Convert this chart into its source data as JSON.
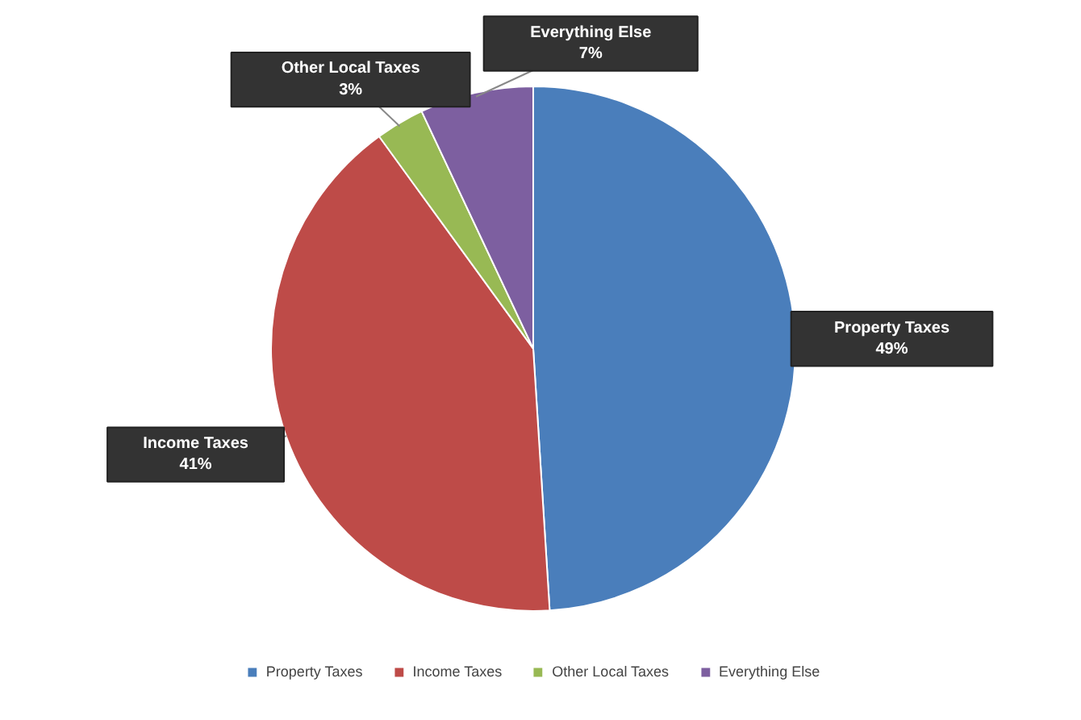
{
  "chart_data": {
    "type": "pie",
    "categories": [
      "Property Taxes",
      "Income Taxes",
      "Other Local Taxes",
      "Everything Else"
    ],
    "values": [
      49,
      41,
      3,
      7
    ],
    "colors": [
      "#4a7ebb",
      "#be4b48",
      "#98b954",
      "#7d5fa0"
    ],
    "value_labels": [
      "49%",
      "41%",
      "3%",
      "7%"
    ],
    "legend": "bottom"
  }
}
